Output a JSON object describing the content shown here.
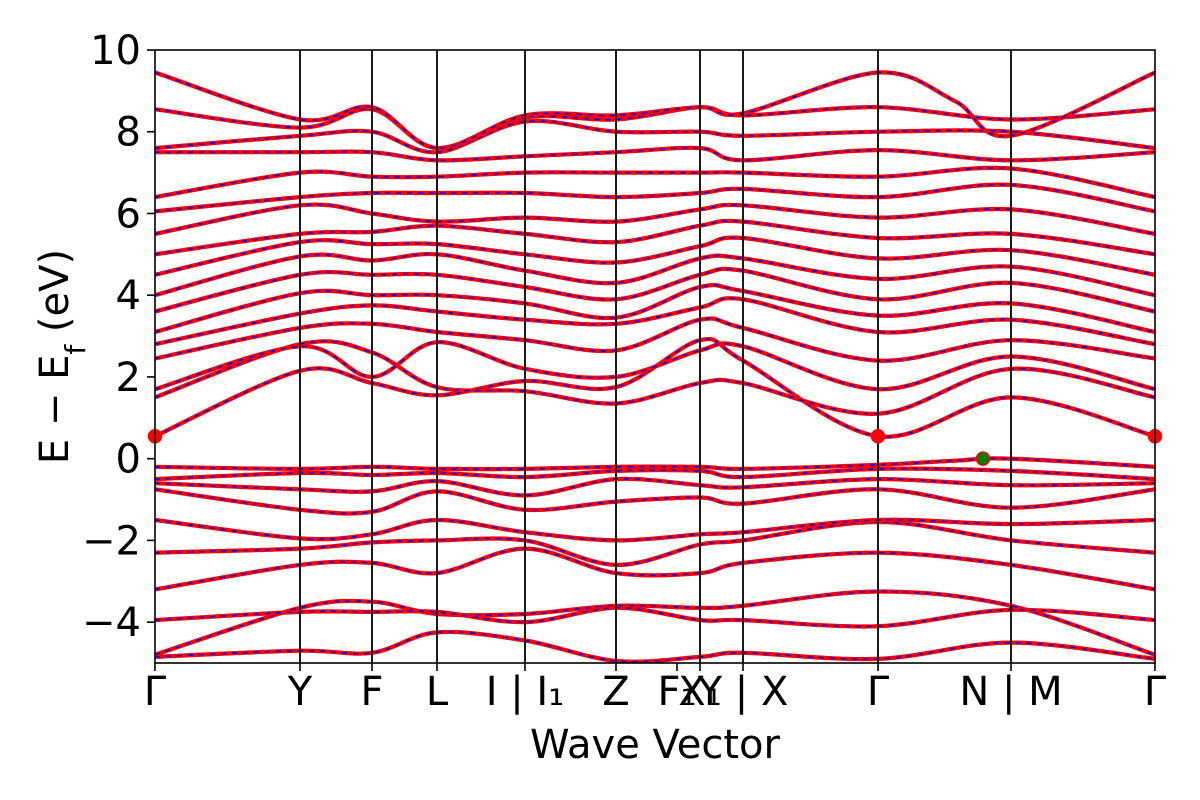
{
  "chart_data": {
    "type": "line",
    "title": "",
    "xlabel": "Wave Vector",
    "ylabel": "E − E_f (eV)",
    "ylabel_parts": {
      "main": "E  −  E",
      "sub": "f",
      "unit": " (eV)"
    },
    "ylim": [
      -5,
      10
    ],
    "yticks": [
      10,
      8,
      6,
      4,
      2,
      0,
      -2,
      -4
    ],
    "ytick_labels": [
      "10",
      "8",
      "6",
      "4",
      "2",
      "0",
      "−2",
      "−4"
    ],
    "grid": false,
    "legend": "none",
    "kpath": [
      {
        "label": "Γ",
        "x": 0.0
      },
      {
        "label": "Y",
        "x": 0.145
      },
      {
        "label": "F",
        "x": 0.217
      },
      {
        "label": "L",
        "x": 0.282
      },
      {
        "label": "I | I₁",
        "x": 0.37
      },
      {
        "label": "Z",
        "x": 0.461
      },
      {
        "label": "F₁",
        "x": 0.522
      },
      {
        "label": "X₁",
        "x": 0.545
      },
      {
        "label": "Y | X",
        "x": 0.588
      },
      {
        "label": "Γ",
        "x": 0.723
      },
      {
        "label": "N | M",
        "x": 0.856
      },
      {
        "label": "Γ",
        "x": 1.0
      }
    ],
    "vlines": [
      0.145,
      0.217,
      0.282,
      0.37,
      0.461,
      0.545,
      0.588,
      0.723,
      0.856
    ],
    "segment_breaks": [
      0.545,
      0.856
    ],
    "series": [
      {
        "style": "solid",
        "color": "#ff0000"
      },
      {
        "style": "dashed",
        "color": "#0000ff"
      }
    ],
    "valence_bands": [
      [
        [
          0,
          -4.85
        ],
        [
          0.145,
          -4.7
        ],
        [
          0.217,
          -4.75
        ],
        [
          0.282,
          -4.25
        ],
        [
          0.37,
          -4.45
        ],
        [
          0.461,
          -4.95
        ],
        [
          0.545,
          -4.85
        ],
        [
          0.588,
          -4.75
        ],
        [
          0.723,
          -4.9
        ],
        [
          0.856,
          -4.5
        ],
        [
          1,
          -4.9
        ]
      ],
      [
        [
          0,
          -4.8
        ],
        [
          0.145,
          -3.65
        ],
        [
          0.217,
          -3.5
        ],
        [
          0.282,
          -3.8
        ],
        [
          0.37,
          -3.8
        ],
        [
          0.461,
          -3.6
        ],
        [
          0.545,
          -3.65
        ],
        [
          0.588,
          -3.6
        ],
        [
          0.723,
          -3.25
        ],
        [
          0.856,
          -3.6
        ],
        [
          1,
          -4.8
        ]
      ],
      [
        [
          0,
          -3.95
        ],
        [
          0.145,
          -3.75
        ],
        [
          0.217,
          -3.75
        ],
        [
          0.282,
          -3.75
        ],
        [
          0.37,
          -4.0
        ],
        [
          0.461,
          -3.65
        ],
        [
          0.545,
          -3.95
        ],
        [
          0.588,
          -3.95
        ],
        [
          0.723,
          -4.1
        ],
        [
          0.856,
          -3.7
        ],
        [
          1,
          -3.95
        ]
      ],
      [
        [
          0,
          -3.2
        ],
        [
          0.145,
          -2.6
        ],
        [
          0.217,
          -2.55
        ],
        [
          0.282,
          -2.8
        ],
        [
          0.37,
          -2.2
        ],
        [
          0.461,
          -2.8
        ],
        [
          0.545,
          -2.8
        ],
        [
          0.588,
          -2.55
        ],
        [
          0.723,
          -2.3
        ],
        [
          0.856,
          -2.6
        ],
        [
          1,
          -3.2
        ]
      ],
      [
        [
          0,
          -2.3
        ],
        [
          0.145,
          -2.2
        ],
        [
          0.217,
          -2.05
        ],
        [
          0.282,
          -2.0
        ],
        [
          0.37,
          -2.0
        ],
        [
          0.461,
          -2.6
        ],
        [
          0.545,
          -2.1
        ],
        [
          0.588,
          -2.0
        ],
        [
          0.723,
          -1.55
        ],
        [
          0.856,
          -2.0
        ],
        [
          1,
          -2.3
        ]
      ],
      [
        [
          0,
          -1.5
        ],
        [
          0.145,
          -1.95
        ],
        [
          0.217,
          -1.85
        ],
        [
          0.282,
          -1.5
        ],
        [
          0.37,
          -1.8
        ],
        [
          0.461,
          -2.0
        ],
        [
          0.545,
          -1.85
        ],
        [
          0.588,
          -1.8
        ],
        [
          0.723,
          -1.5
        ],
        [
          0.856,
          -1.6
        ],
        [
          1,
          -1.5
        ]
      ],
      [
        [
          0,
          -0.75
        ],
        [
          0.145,
          -1.25
        ],
        [
          0.217,
          -1.3
        ],
        [
          0.282,
          -0.8
        ],
        [
          0.37,
          -1.25
        ],
        [
          0.461,
          -1.05
        ],
        [
          0.545,
          -0.95
        ],
        [
          0.588,
          -1.1
        ],
        [
          0.723,
          -0.75
        ],
        [
          0.856,
          -1.2
        ],
        [
          1,
          -0.75
        ]
      ],
      [
        [
          0,
          -0.6
        ],
        [
          0.145,
          -0.75
        ],
        [
          0.217,
          -0.8
        ],
        [
          0.282,
          -0.55
        ],
        [
          0.37,
          -0.9
        ],
        [
          0.461,
          -0.5
        ],
        [
          0.545,
          -0.65
        ],
        [
          0.588,
          -0.7
        ],
        [
          0.723,
          -0.5
        ],
        [
          0.856,
          -0.65
        ],
        [
          1,
          -0.6
        ]
      ],
      [
        [
          0,
          -0.5
        ],
        [
          0.145,
          -0.35
        ],
        [
          0.217,
          -0.4
        ],
        [
          0.282,
          -0.35
        ],
        [
          0.37,
          -0.45
        ],
        [
          0.461,
          -0.3
        ],
        [
          0.545,
          -0.3
        ],
        [
          0.588,
          -0.45
        ],
        [
          0.723,
          -0.25
        ],
        [
          0.856,
          -0.3
        ],
        [
          1,
          -0.5
        ]
      ],
      [
        [
          0,
          -0.2
        ],
        [
          0.145,
          -0.25
        ],
        [
          0.217,
          -0.2
        ],
        [
          0.282,
          -0.25
        ],
        [
          0.37,
          -0.25
        ],
        [
          0.461,
          -0.2
        ],
        [
          0.545,
          -0.2
        ],
        [
          0.588,
          -0.25
        ],
        [
          0.723,
          -0.15
        ],
        [
          0.8,
          -0.05
        ],
        [
          0.856,
          0.0
        ],
        [
          1,
          -0.2
        ]
      ]
    ],
    "conduction_bands": [
      [
        [
          0,
          0.55
        ],
        [
          0.145,
          2.15
        ],
        [
          0.217,
          1.85
        ],
        [
          0.282,
          1.55
        ],
        [
          0.37,
          1.9
        ],
        [
          0.461,
          1.75
        ],
        [
          0.545,
          2.9
        ],
        [
          0.588,
          2.4
        ],
        [
          0.723,
          0.55
        ],
        [
          0.856,
          1.5
        ],
        [
          1,
          0.55
        ]
      ],
      [
        [
          0,
          1.5
        ],
        [
          0.145,
          2.8
        ],
        [
          0.217,
          2.6
        ],
        [
          0.282,
          1.75
        ],
        [
          0.37,
          1.65
        ],
        [
          0.461,
          1.35
        ],
        [
          0.545,
          1.85
        ],
        [
          0.588,
          1.85
        ],
        [
          0.723,
          1.1
        ],
        [
          0.856,
          2.2
        ],
        [
          1,
          1.5
        ]
      ],
      [
        [
          0,
          1.7
        ],
        [
          0.145,
          2.75
        ],
        [
          0.217,
          2.0
        ],
        [
          0.282,
          2.85
        ],
        [
          0.37,
          2.2
        ],
        [
          0.461,
          2.0
        ],
        [
          0.545,
          2.65
        ],
        [
          0.588,
          2.75
        ],
        [
          0.723,
          1.7
        ],
        [
          0.856,
          2.5
        ],
        [
          1,
          1.7
        ]
      ],
      [
        [
          0,
          2.45
        ],
        [
          0.145,
          3.2
        ],
        [
          0.217,
          3.3
        ],
        [
          0.282,
          3.1
        ],
        [
          0.37,
          2.9
        ],
        [
          0.461,
          2.65
        ],
        [
          0.545,
          3.4
        ],
        [
          0.588,
          3.2
        ],
        [
          0.723,
          2.4
        ],
        [
          0.856,
          2.9
        ],
        [
          1,
          2.45
        ]
      ],
      [
        [
          0,
          2.8
        ],
        [
          0.145,
          3.55
        ],
        [
          0.217,
          3.75
        ],
        [
          0.282,
          3.6
        ],
        [
          0.37,
          3.4
        ],
        [
          0.461,
          3.3
        ],
        [
          0.545,
          3.7
        ],
        [
          0.588,
          3.9
        ],
        [
          0.723,
          3.1
        ],
        [
          0.856,
          3.4
        ],
        [
          1,
          2.8
        ]
      ],
      [
        [
          0,
          3.1
        ],
        [
          0.145,
          4.05
        ],
        [
          0.217,
          4.0
        ],
        [
          0.282,
          4.0
        ],
        [
          0.37,
          3.8
        ],
        [
          0.461,
          3.45
        ],
        [
          0.545,
          4.2
        ],
        [
          0.588,
          4.1
        ],
        [
          0.723,
          3.5
        ],
        [
          0.856,
          3.8
        ],
        [
          1,
          3.1
        ]
      ],
      [
        [
          0,
          3.6
        ],
        [
          0.145,
          4.5
        ],
        [
          0.217,
          4.5
        ],
        [
          0.282,
          4.5
        ],
        [
          0.37,
          4.2
        ],
        [
          0.461,
          3.9
        ],
        [
          0.545,
          4.5
        ],
        [
          0.588,
          4.6
        ],
        [
          0.723,
          3.9
        ],
        [
          0.856,
          4.3
        ],
        [
          1,
          3.6
        ]
      ],
      [
        [
          0,
          4.0
        ],
        [
          0.145,
          4.95
        ],
        [
          0.217,
          4.85
        ],
        [
          0.282,
          5.0
        ],
        [
          0.37,
          4.6
        ],
        [
          0.461,
          4.3
        ],
        [
          0.545,
          4.9
        ],
        [
          0.588,
          4.9
        ],
        [
          0.723,
          4.4
        ],
        [
          0.856,
          4.7
        ],
        [
          1,
          4.0
        ]
      ],
      [
        [
          0,
          4.5
        ],
        [
          0.145,
          5.3
        ],
        [
          0.217,
          5.25
        ],
        [
          0.282,
          5.25
        ],
        [
          0.37,
          5.0
        ],
        [
          0.461,
          4.8
        ],
        [
          0.545,
          5.2
        ],
        [
          0.588,
          5.4
        ],
        [
          0.723,
          4.9
        ],
        [
          0.856,
          5.1
        ],
        [
          1,
          4.5
        ]
      ],
      [
        [
          0,
          5.0
        ],
        [
          0.145,
          5.5
        ],
        [
          0.217,
          5.55
        ],
        [
          0.282,
          5.7
        ],
        [
          0.37,
          5.5
        ],
        [
          0.461,
          5.3
        ],
        [
          0.545,
          5.7
        ],
        [
          0.588,
          5.8
        ],
        [
          0.723,
          5.4
        ],
        [
          0.856,
          5.5
        ],
        [
          1,
          5.0
        ]
      ],
      [
        [
          0,
          5.5
        ],
        [
          0.145,
          6.2
        ],
        [
          0.217,
          6.0
        ],
        [
          0.282,
          5.8
        ],
        [
          0.37,
          5.9
        ],
        [
          0.461,
          5.8
        ],
        [
          0.545,
          6.1
        ],
        [
          0.588,
          6.2
        ],
        [
          0.723,
          5.9
        ],
        [
          0.856,
          6.1
        ],
        [
          1,
          5.5
        ]
      ],
      [
        [
          0,
          6.05
        ],
        [
          0.145,
          6.4
        ],
        [
          0.217,
          6.5
        ],
        [
          0.282,
          6.5
        ],
        [
          0.37,
          6.5
        ],
        [
          0.461,
          6.4
        ],
        [
          0.545,
          6.5
        ],
        [
          0.588,
          6.6
        ],
        [
          0.723,
          6.4
        ],
        [
          0.856,
          6.7
        ],
        [
          1,
          6.05
        ]
      ],
      [
        [
          0,
          6.4
        ],
        [
          0.145,
          7.0
        ],
        [
          0.217,
          6.9
        ],
        [
          0.282,
          6.9
        ],
        [
          0.37,
          7.0
        ],
        [
          0.461,
          7.0
        ],
        [
          0.545,
          7.0
        ],
        [
          0.588,
          7.0
        ],
        [
          0.723,
          6.9
        ],
        [
          0.856,
          7.1
        ],
        [
          1,
          6.4
        ]
      ],
      [
        [
          0,
          7.5
        ],
        [
          0.145,
          7.5
        ],
        [
          0.217,
          7.5
        ],
        [
          0.282,
          7.3
        ],
        [
          0.37,
          7.4
        ],
        [
          0.461,
          7.5
        ],
        [
          0.545,
          7.6
        ],
        [
          0.588,
          7.3
        ],
        [
          0.723,
          7.55
        ],
        [
          0.856,
          7.3
        ],
        [
          1,
          7.5
        ]
      ],
      [
        [
          0,
          7.6
        ],
        [
          0.145,
          7.9
        ],
        [
          0.217,
          8.0
        ],
        [
          0.282,
          7.5
        ],
        [
          0.37,
          8.25
        ],
        [
          0.461,
          8.0
        ],
        [
          0.545,
          8.0
        ],
        [
          0.588,
          7.9
        ],
        [
          0.723,
          8.0
        ],
        [
          0.856,
          8.0
        ],
        [
          1,
          7.6
        ]
      ],
      [
        [
          0,
          8.55
        ],
        [
          0.145,
          8.1
        ],
        [
          0.217,
          8.55
        ],
        [
          0.282,
          7.6
        ],
        [
          0.37,
          8.35
        ],
        [
          0.461,
          8.3
        ],
        [
          0.545,
          8.6
        ],
        [
          0.588,
          8.4
        ],
        [
          0.723,
          8.6
        ],
        [
          0.856,
          8.3
        ],
        [
          1,
          8.55
        ]
      ],
      [
        [
          0,
          9.45
        ],
        [
          0.145,
          8.3
        ],
        [
          0.217,
          8.6
        ],
        [
          0.282,
          7.6
        ],
        [
          0.37,
          8.4
        ],
        [
          0.461,
          8.4
        ],
        [
          0.545,
          8.6
        ],
        [
          0.588,
          8.45
        ],
        [
          0.723,
          9.45
        ],
        [
          0.8,
          8.75
        ],
        [
          0.856,
          7.9
        ],
        [
          1,
          9.45
        ]
      ]
    ],
    "markers": [
      {
        "x": 0.0,
        "y": 0.55,
        "color": "#ff0000",
        "meaning": "CBM"
      },
      {
        "x": 0.723,
        "y": 0.55,
        "color": "#ff0000",
        "meaning": "CBM"
      },
      {
        "x": 1.0,
        "y": 0.55,
        "color": "#ff0000",
        "meaning": "CBM"
      },
      {
        "x": 0.828,
        "y": 0.0,
        "color": "#008000",
        "meaning": "VBM"
      }
    ]
  }
}
